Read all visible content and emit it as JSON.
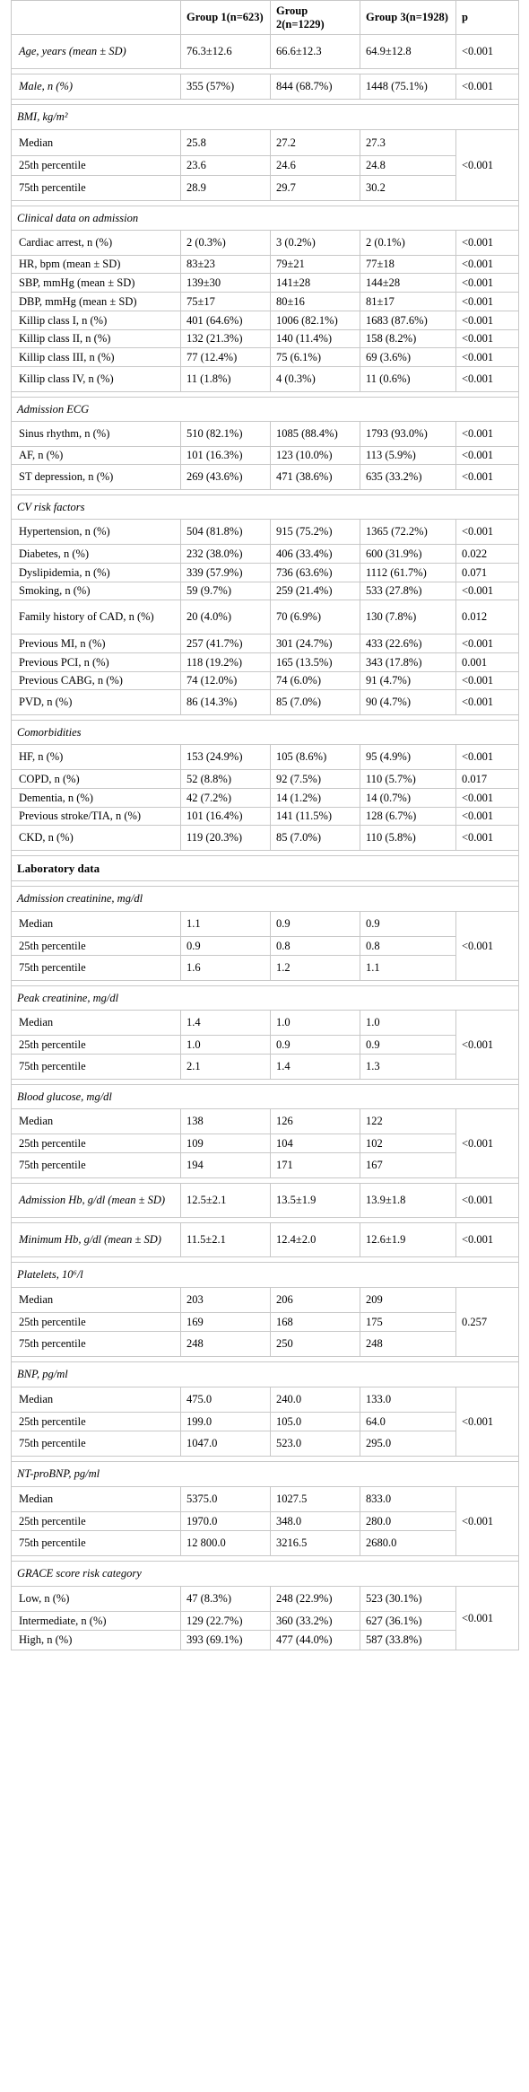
{
  "header": {
    "col0": "",
    "col1": "Group 1(n=623)",
    "col2": "Group 2(n=1229)",
    "col3": "Group 3(n=1928)",
    "col4": "p"
  },
  "rows": [
    {
      "type": "row",
      "h": 38,
      "style": "ital",
      "cells": [
        "Age, years (mean ± SD)",
        "76.3±12.6",
        "66.6±12.3",
        "64.9±12.8",
        "<0.001"
      ]
    },
    {
      "type": "spacer",
      "h": 6
    },
    {
      "type": "row",
      "h": 28,
      "style": "ital",
      "cells": [
        "Male, n (%)",
        "355 (57%)",
        "844 (68.7%)",
        "1448 (75.1%)",
        "<0.001"
      ]
    },
    {
      "type": "spacer",
      "h": 6
    },
    {
      "type": "section",
      "h": 28,
      "label": "BMI, kg/m²"
    },
    {
      "type": "group",
      "p": "<0.001",
      "rows": [
        {
          "h": 29,
          "cells": [
            "Median",
            "25.8",
            "27.2",
            "27.3"
          ]
        },
        {
          "h": 22,
          "cells": [
            "25th percentile",
            "23.6",
            "24.6",
            "24.8"
          ]
        },
        {
          "h": 28,
          "cells": [
            "75th percentile",
            "28.9",
            "29.7",
            "30.2"
          ]
        }
      ]
    },
    {
      "type": "spacer",
      "h": 6
    },
    {
      "type": "section",
      "h": 27,
      "label": "Clinical data on admission"
    },
    {
      "type": "row",
      "h": 28,
      "cells": [
        "Cardiac arrest, n (%)",
        "2 (0.3%)",
        "3 (0.2%)",
        "2 (0.1%)",
        "<0.001"
      ]
    },
    {
      "type": "row",
      "h": 20,
      "cells": [
        "HR, bpm (mean ± SD)",
        "83±23",
        "79±21",
        "77±18",
        "<0.001"
      ]
    },
    {
      "type": "row",
      "h": 21,
      "cells": [
        "SBP, mmHg (mean ± SD)",
        "139±30",
        "141±28",
        "144±28",
        "<0.001"
      ]
    },
    {
      "type": "row",
      "h": 21,
      "cells": [
        "DBP, mmHg (mean ± SD)",
        "75±17",
        "80±16",
        "81±17",
        "<0.001"
      ]
    },
    {
      "type": "row",
      "h": 21,
      "cells": [
        "Killip class I, n (%)",
        "401 (64.6%)",
        "1006 (82.1%)",
        "1683 (87.6%)",
        "<0.001"
      ]
    },
    {
      "type": "row",
      "h": 20,
      "cells": [
        "Killip class II, n (%)",
        "132 (21.3%)",
        "140 (11.4%)",
        "158 (8.2%)",
        "<0.001"
      ]
    },
    {
      "type": "row",
      "h": 21,
      "cells": [
        "Killip class III, n (%)",
        "77 (12.4%)",
        "75 (6.1%)",
        "69 (3.6%)",
        "<0.001"
      ]
    },
    {
      "type": "row",
      "h": 28,
      "cells": [
        "Killip class IV, n (%)",
        "11 (1.8%)",
        "4 (0.3%)",
        "11 (0.6%)",
        "<0.001"
      ]
    },
    {
      "type": "spacer",
      "h": 6
    },
    {
      "type": "section",
      "h": 27,
      "label": "Admission ECG"
    },
    {
      "type": "row",
      "h": 28,
      "cells": [
        "Sinus rhythm, n (%)",
        "510 (82.1%)",
        "1085 (88.4%)",
        "1793 (93.0%)",
        "<0.001"
      ]
    },
    {
      "type": "row",
      "h": 20,
      "cells": [
        "AF, n (%)",
        "101 (16.3%)",
        "123 (10.0%)",
        "113 (5.9%)",
        "<0.001"
      ]
    },
    {
      "type": "row",
      "h": 28,
      "cells": [
        "ST depression, n (%)",
        "269 (43.6%)",
        "471 (38.6%)",
        "635 (33.2%)",
        "<0.001"
      ]
    },
    {
      "type": "spacer",
      "h": 6
    },
    {
      "type": "section",
      "h": 27,
      "label": "CV risk factors"
    },
    {
      "type": "row",
      "h": 28,
      "cells": [
        "Hypertension, n (%)",
        "504 (81.8%)",
        "915 (75.2%)",
        "1365 (72.2%)",
        "<0.001"
      ]
    },
    {
      "type": "row",
      "h": 21,
      "cells": [
        "Diabetes, n (%)",
        "232 (38.0%)",
        "406 (33.4%)",
        "600 (31.9%)",
        "0.022"
      ]
    },
    {
      "type": "row",
      "h": 21,
      "cells": [
        "Dyslipidemia, n (%)",
        "339 (57.9%)",
        "736 (63.6%)",
        "1112 (61.7%)",
        "0.071"
      ]
    },
    {
      "type": "row",
      "h": 20,
      "cells": [
        "Smoking, n (%)",
        "59 (9.7%)",
        "259 (21.4%)",
        "533 (27.8%)",
        "<0.001"
      ]
    },
    {
      "type": "row",
      "h": 38,
      "cells": [
        "Family history of CAD, n (%)",
        "20 (4.0%)",
        "70 (6.9%)",
        "130 (7.8%)",
        "0.012"
      ]
    },
    {
      "type": "row",
      "h": 21,
      "cells": [
        "Previous MI, n (%)",
        "257 (41.7%)",
        "301 (24.7%)",
        "433 (22.6%)",
        "<0.001"
      ]
    },
    {
      "type": "row",
      "h": 21,
      "cells": [
        "Previous PCI, n (%)",
        "118 (19.2%)",
        "165 (13.5%)",
        "343 (17.8%)",
        "0.001"
      ]
    },
    {
      "type": "row",
      "h": 20,
      "cells": [
        "Previous CABG, n (%)",
        "74 (12.0%)",
        "74 (6.0%)",
        "91 (4.7%)",
        "<0.001"
      ]
    },
    {
      "type": "row",
      "h": 28,
      "cells": [
        "PVD, n (%)",
        "86 (14.3%)",
        "85 (7.0%)",
        "90 (4.7%)",
        "<0.001"
      ]
    },
    {
      "type": "spacer",
      "h": 6
    },
    {
      "type": "section",
      "h": 27,
      "label": "Comorbidities"
    },
    {
      "type": "row",
      "h": 28,
      "cells": [
        "HF, n (%)",
        "153 (24.9%)",
        "105 (8.6%)",
        "95 (4.9%)",
        "<0.001"
      ]
    },
    {
      "type": "row",
      "h": 21,
      "cells": [
        "COPD, n (%)",
        "52 (8.8%)",
        "92 (7.5%)",
        "110 (5.7%)",
        "0.017"
      ]
    },
    {
      "type": "row",
      "h": 21,
      "cells": [
        "Dementia, n (%)",
        "42 (7.2%)",
        "14 (1.2%)",
        "14 (0.7%)",
        "<0.001"
      ]
    },
    {
      "type": "row",
      "h": 20,
      "cells": [
        "Previous stroke/TIA, n (%)",
        "101 (16.4%)",
        "141 (11.5%)",
        "128 (6.7%)",
        "<0.001"
      ]
    },
    {
      "type": "row",
      "h": 28,
      "cells": [
        "CKD, n (%)",
        "119 (20.3%)",
        "85 (7.0%)",
        "110 (5.8%)",
        "<0.001"
      ]
    },
    {
      "type": "spacer",
      "h": 6
    },
    {
      "type": "big",
      "h": 28,
      "label": "Laboratory data"
    },
    {
      "type": "spacer",
      "h": 6
    },
    {
      "type": "section",
      "h": 28,
      "label": "Admission creatinine, mg/dl"
    },
    {
      "type": "group",
      "p": "<0.001",
      "rows": [
        {
          "h": 28,
          "cells": [
            "Median",
            "1.1",
            "0.9",
            "0.9"
          ]
        },
        {
          "h": 21,
          "cells": [
            "25th percentile",
            "0.9",
            "0.8",
            "0.8"
          ]
        },
        {
          "h": 28,
          "cells": [
            "75th percentile",
            "1.6",
            "1.2",
            "1.1"
          ]
        }
      ]
    },
    {
      "type": "spacer",
      "h": 6
    },
    {
      "type": "section",
      "h": 27,
      "label": "Peak creatinine, mg/dl"
    },
    {
      "type": "group",
      "p": "<0.001",
      "rows": [
        {
          "h": 28,
          "cells": [
            "Median",
            "1.4",
            "1.0",
            "1.0"
          ]
        },
        {
          "h": 21,
          "cells": [
            "25th percentile",
            "1.0",
            "0.9",
            "0.9"
          ]
        },
        {
          "h": 28,
          "cells": [
            "75th percentile",
            "2.1",
            "1.4",
            "1.3"
          ]
        }
      ]
    },
    {
      "type": "spacer",
      "h": 6
    },
    {
      "type": "section",
      "h": 27,
      "label": "Blood glucose, mg/dl"
    },
    {
      "type": "group",
      "p": "<0.001",
      "rows": [
        {
          "h": 28,
          "cells": [
            "Median",
            "138",
            "126",
            "122"
          ]
        },
        {
          "h": 21,
          "cells": [
            "25th percentile",
            "109",
            "104",
            "102"
          ]
        },
        {
          "h": 28,
          "cells": [
            "75th percentile",
            "194",
            "171",
            "167"
          ]
        }
      ]
    },
    {
      "type": "spacer",
      "h": 6
    },
    {
      "type": "row",
      "h": 38,
      "style": "ital",
      "cells": [
        "Admission Hb, g/dl (mean ± SD)",
        "12.5±2.1",
        "13.5±1.9",
        "13.9±1.8",
        "<0.001"
      ]
    },
    {
      "type": "spacer",
      "h": 6
    },
    {
      "type": "row",
      "h": 38,
      "style": "ital",
      "cells": [
        "Minimum Hb, g/dl (mean ± SD)",
        "11.5±2.1",
        "12.4±2.0",
        "12.6±1.9",
        "<0.001"
      ]
    },
    {
      "type": "spacer",
      "h": 6
    },
    {
      "type": "section",
      "h": 28,
      "label": "Platelets, 10⁶/l"
    },
    {
      "type": "group",
      "p": "0.257",
      "rows": [
        {
          "h": 28,
          "cells": [
            "Median",
            "203",
            "206",
            "209"
          ]
        },
        {
          "h": 21,
          "cells": [
            "25th percentile",
            "169",
            "168",
            "175"
          ]
        },
        {
          "h": 28,
          "cells": [
            "75th percentile",
            "248",
            "250",
            "248"
          ]
        }
      ]
    },
    {
      "type": "spacer",
      "h": 6
    },
    {
      "type": "section",
      "h": 28,
      "label": "BNP, pg/ml"
    },
    {
      "type": "group",
      "p": "<0.001",
      "rows": [
        {
          "h": 28,
          "cells": [
            "Median",
            "475.0",
            "240.0",
            "133.0"
          ]
        },
        {
          "h": 21,
          "cells": [
            "25th percentile",
            "199.0",
            "105.0",
            "64.0"
          ]
        },
        {
          "h": 28,
          "cells": [
            "75th percentile",
            "1047.0",
            "523.0",
            "295.0"
          ]
        }
      ]
    },
    {
      "type": "spacer",
      "h": 6
    },
    {
      "type": "section",
      "h": 28,
      "label": "NT-proBNP, pg/ml"
    },
    {
      "type": "group",
      "p": "<0.001",
      "rows": [
        {
          "h": 28,
          "cells": [
            "Median",
            "5375.0",
            "1027.5",
            "833.0"
          ]
        },
        {
          "h": 21,
          "cells": [
            "25th percentile",
            "1970.0",
            "348.0",
            "280.0"
          ]
        },
        {
          "h": 28,
          "cells": [
            "75th percentile",
            "12 800.0",
            "3216.5",
            "2680.0"
          ]
        }
      ]
    },
    {
      "type": "spacer",
      "h": 6
    },
    {
      "type": "section",
      "h": 28,
      "label": "GRACE score risk category"
    },
    {
      "type": "group",
      "p": "<0.001",
      "rows": [
        {
          "h": 28,
          "cells": [
            "Low, n (%)",
            "47 (8.3%)",
            "248 (22.9%)",
            "523 (30.1%)"
          ]
        },
        {
          "h": 21,
          "cells": [
            "Intermediate, n (%)",
            "129 (22.7%)",
            "360 (33.2%)",
            "627 (36.1%)"
          ]
        },
        {
          "h": 22,
          "cells": [
            "High, n (%)",
            "393 (69.1%)",
            "477 (44.0%)",
            "587 (33.8%)"
          ]
        }
      ]
    }
  ]
}
